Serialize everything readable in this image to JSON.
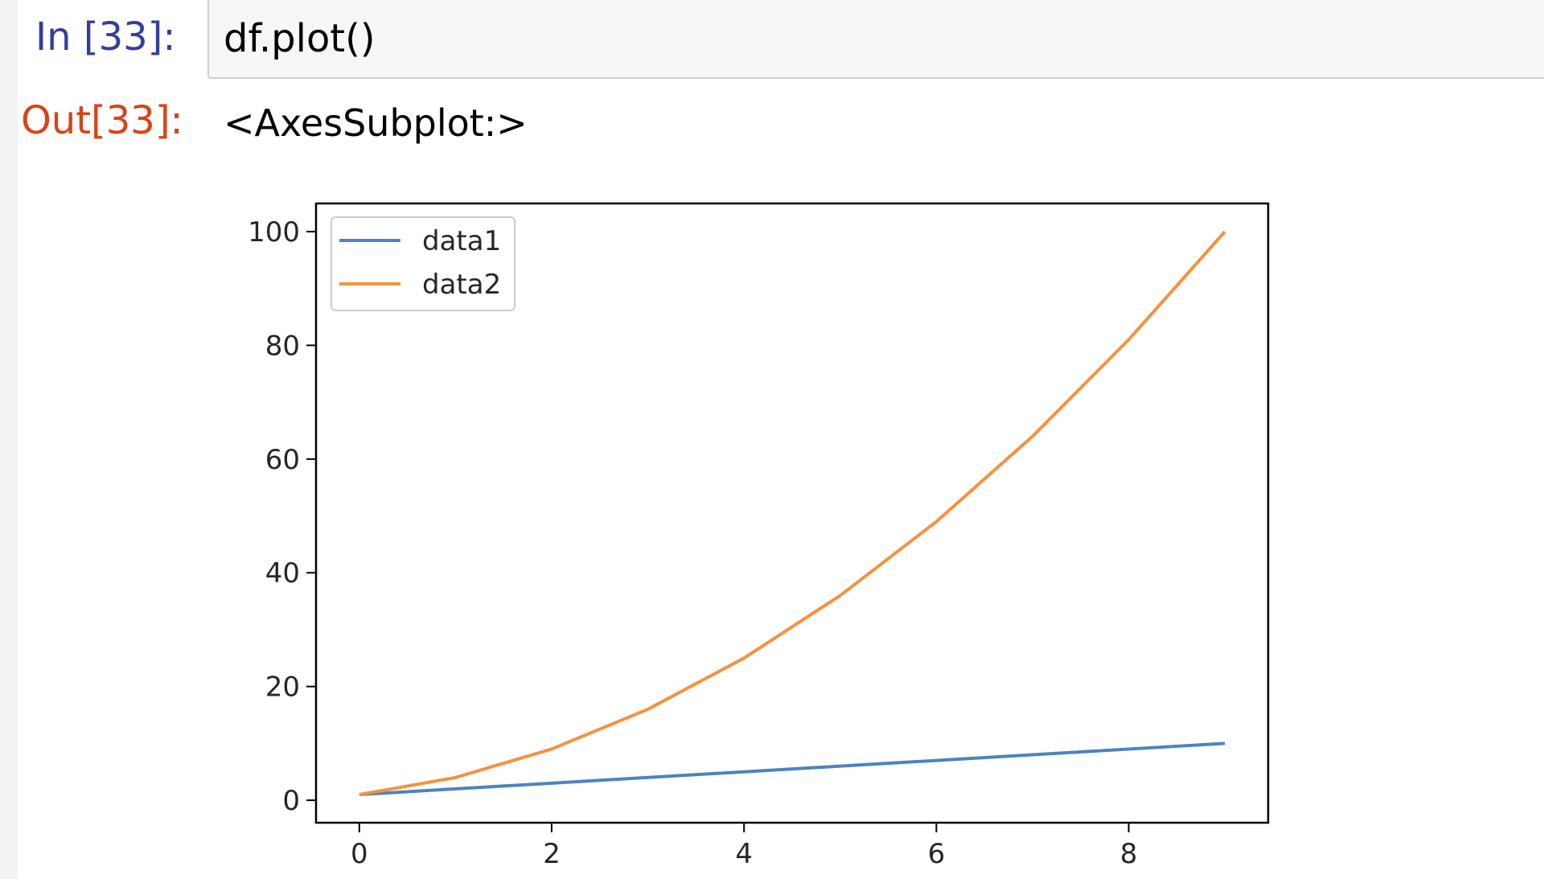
{
  "notebook": {
    "in_prompt": "In [33]:",
    "code": "df.plot()",
    "out_prompt": "Out[33]:",
    "output_text": "<AxesSubplot:>"
  },
  "colors": {
    "in_prompt": "#303f9f",
    "out_prompt": "#d84315",
    "data1": "#4c84be",
    "data2": "#f59240"
  },
  "chart_data": {
    "type": "line",
    "x": [
      0,
      1,
      2,
      3,
      4,
      5,
      6,
      7,
      8,
      9
    ],
    "series": [
      {
        "name": "data1",
        "values": [
          1,
          2,
          3,
          4,
          5,
          6,
          7,
          8,
          9,
          10
        ]
      },
      {
        "name": "data2",
        "values": [
          1,
          4,
          9,
          16,
          25,
          36,
          49,
          64,
          81,
          100
        ]
      }
    ],
    "xticks": [
      0,
      2,
      4,
      6,
      8
    ],
    "yticks": [
      0,
      20,
      40,
      60,
      80,
      100
    ],
    "xlim": [
      -0.45,
      9.45
    ],
    "ylim": [
      -3.95,
      104.95
    ],
    "title": "",
    "xlabel": "",
    "ylabel": "",
    "grid": false,
    "legend_position": "top-left"
  }
}
